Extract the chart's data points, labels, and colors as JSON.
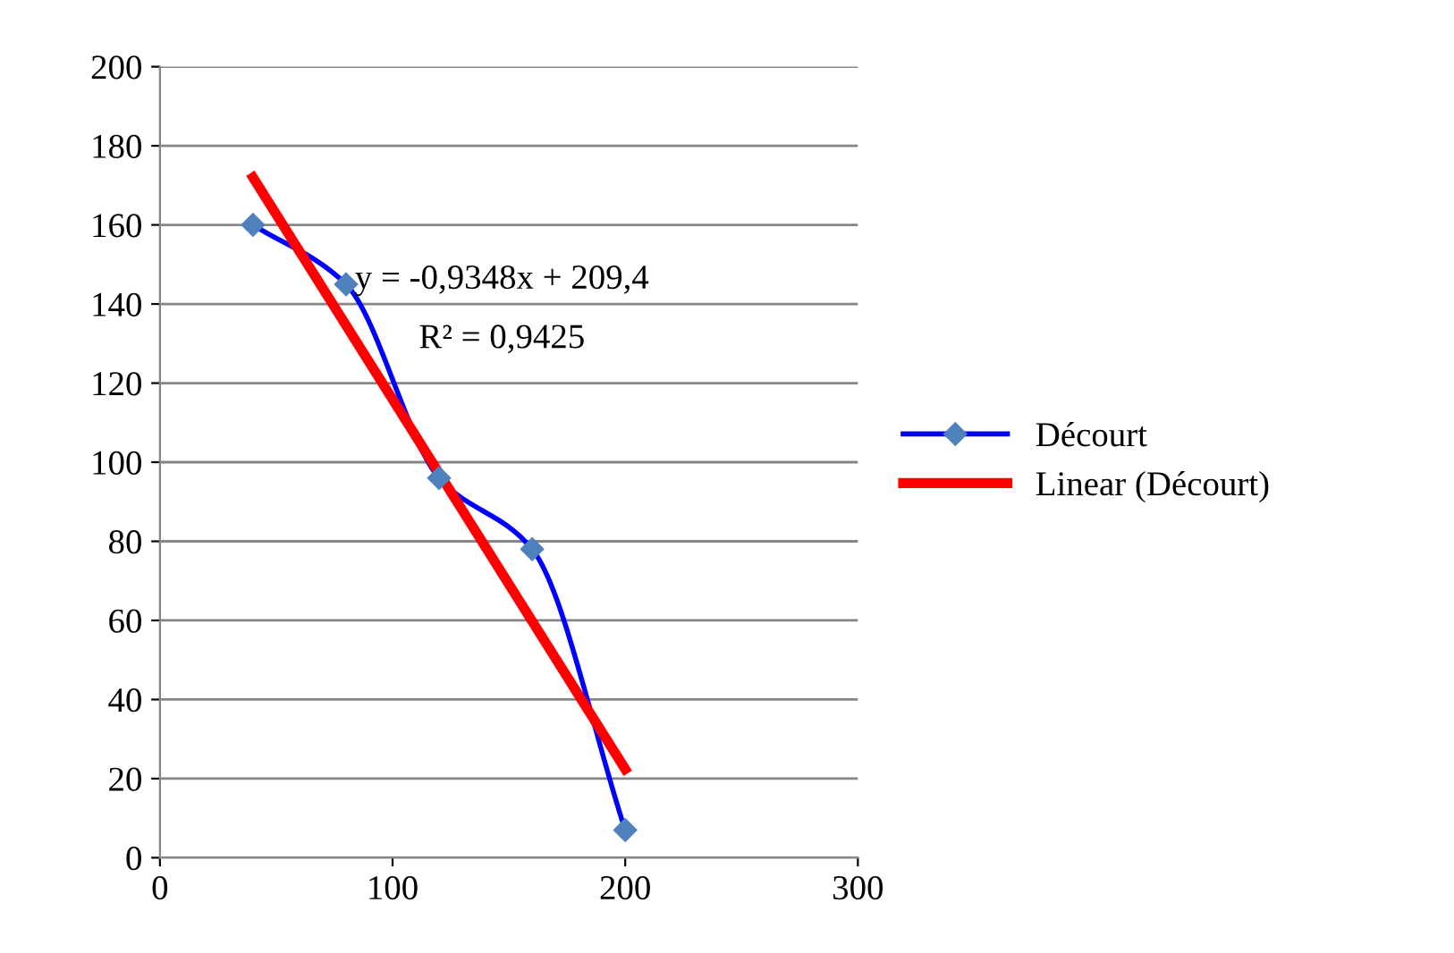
{
  "chart_data": {
    "type": "line",
    "series": [
      {
        "name": "Décourt",
        "color": "#0000ff",
        "x": [
          40,
          80,
          120,
          160,
          200
        ],
        "values": [
          160,
          145,
          96,
          78,
          7
        ],
        "marker": "diamond"
      },
      {
        "name": "Linear (Décourt)",
        "color": "#ff0000",
        "x": [
          40,
          200
        ],
        "values": [
          172.0,
          22.4
        ],
        "marker": "none"
      }
    ],
    "annotations": [
      "y = -0,9348x + 209,4",
      "R² = 0,9425"
    ],
    "xlim": [
      0,
      300
    ],
    "xticks": [
      0,
      100,
      200,
      300
    ],
    "ylim": [
      0,
      200
    ],
    "yticks": [
      0,
      20,
      40,
      60,
      80,
      100,
      120,
      140,
      160,
      180,
      200
    ],
    "grid": "y",
    "legend": "right"
  }
}
